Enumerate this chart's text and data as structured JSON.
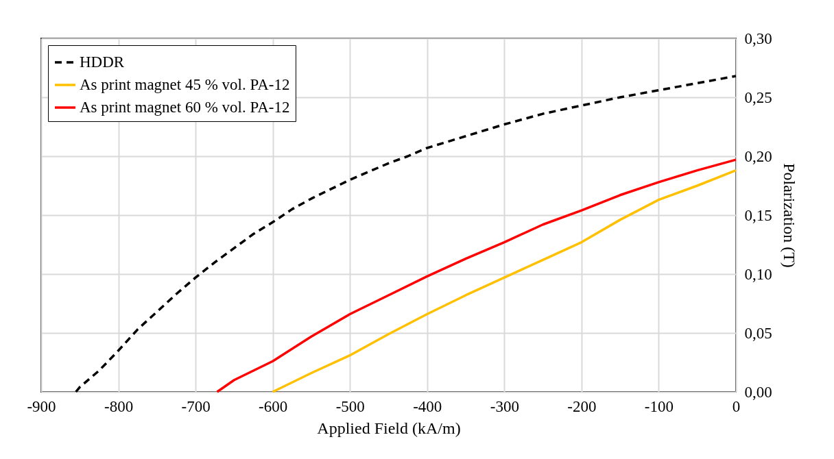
{
  "chart_data": {
    "type": "line",
    "xlabel": "Applied Field (kA/m)",
    "ylabel": "Polarization (T)",
    "xlim": [
      -900,
      0
    ],
    "xticks": [
      -900,
      -800,
      -700,
      -600,
      -500,
      -400,
      -300,
      -200,
      -100,
      0
    ],
    "ylim": [
      0,
      0.3
    ],
    "yticks": [
      {
        "value": 0,
        "label": "0,00"
      },
      {
        "value": 0.05,
        "label": "0,05"
      },
      {
        "value": 0.1,
        "label": "0,10"
      },
      {
        "value": 0.15,
        "label": "0,15"
      },
      {
        "value": 0.2,
        "label": "0,20"
      },
      {
        "value": 0.25,
        "label": "0,25"
      },
      {
        "value": 0.3,
        "label": "0,30"
      }
    ],
    "grid": true,
    "legend": "top left",
    "marker": "none",
    "series": [
      {
        "name": "HDDR",
        "color": "#000000",
        "line_style": "dashed",
        "x": [
          -855,
          -850,
          -825,
          -800,
          -775,
          -750,
          -725,
          -700,
          -675,
          -650,
          -625,
          -600,
          -575,
          -550,
          -525,
          -500,
          -475,
          -450,
          -425,
          -400,
          -350,
          -300,
          -250,
          -200,
          -150,
          -100,
          -50,
          0
        ],
        "values": [
          0,
          0.004,
          0.018,
          0.035,
          0.053,
          0.068,
          0.083,
          0.097,
          0.11,
          0.122,
          0.134,
          0.144,
          0.155,
          0.164,
          0.172,
          0.18,
          0.187,
          0.194,
          0.2,
          0.207,
          0.217,
          0.227,
          0.236,
          0.243,
          0.25,
          0.256,
          0.262,
          0.268
        ]
      },
      {
        "name": "As print magnet 45 % vol. PA-12",
        "color": "#ffc000",
        "line_style": "solid",
        "x": [
          -600,
          -550,
          -500,
          -450,
          -400,
          -350,
          -300,
          -250,
          -200,
          -150,
          -100,
          -50,
          0
        ],
        "values": [
          0,
          0.016,
          0.031,
          0.049,
          0.066,
          0.082,
          0.097,
          0.112,
          0.127,
          0.146,
          0.163,
          0.175,
          0.188
        ]
      },
      {
        "name": "As print magnet 60 % vol. PA-12",
        "color": "#ff0000",
        "line_style": "solid",
        "x": [
          -672,
          -650,
          -600,
          -550,
          -500,
          -450,
          -400,
          -350,
          -300,
          -250,
          -200,
          -150,
          -100,
          -50,
          0
        ],
        "values": [
          0,
          0.01,
          0.026,
          0.047,
          0.066,
          0.082,
          0.098,
          0.113,
          0.127,
          0.142,
          0.154,
          0.167,
          0.178,
          0.188,
          0.197
        ]
      }
    ]
  }
}
